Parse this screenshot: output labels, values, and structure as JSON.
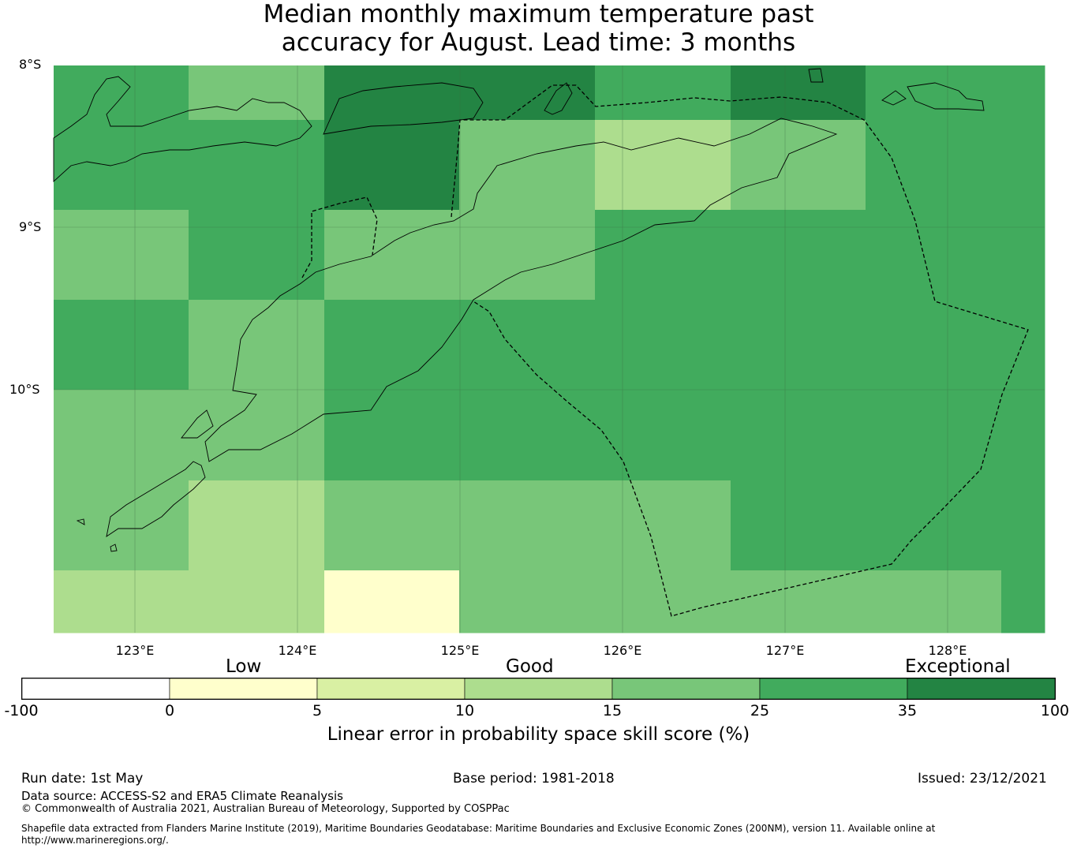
{
  "title": {
    "line1": "Median monthly maximum temperature past",
    "line2": "accuracy for August. Lead time: 3 months"
  },
  "map": {
    "latitude_labels": [
      "8°S",
      "9°S",
      "10°S"
    ],
    "longitude_labels": [
      "123°E",
      "124°E",
      "125°E",
      "126°E",
      "127°E",
      "128°E"
    ],
    "cell_values_pct": [
      [
        30,
        20,
        40,
        40,
        30,
        40,
        30,
        30
      ],
      [
        30,
        30,
        40,
        20,
        12,
        20,
        30,
        30
      ],
      [
        20,
        30,
        20,
        20,
        30,
        30,
        30,
        30
      ],
      [
        30,
        20,
        30,
        30,
        30,
        30,
        30,
        30
      ],
      [
        20,
        20,
        30,
        30,
        30,
        30,
        30,
        30
      ],
      [
        20,
        12,
        20,
        20,
        20,
        30,
        30,
        30
      ],
      [
        12,
        12,
        3,
        20,
        20,
        20,
        20,
        30
      ]
    ]
  },
  "colorbar": {
    "qualitative_labels": [
      "Low",
      "Good",
      "Exceptional"
    ],
    "ticks": [
      "-100",
      "0",
      "5",
      "10",
      "15",
      "25",
      "35",
      "100"
    ],
    "colors": [
      "#ffffff",
      "#ffffcc",
      "#d9f0a3",
      "#addd8e",
      "#78c679",
      "#41ab5d",
      "#238443"
    ],
    "label": "Linear error in probability space skill score (%)"
  },
  "footer": {
    "run_date": "Run date: 1st May",
    "base_period": "Base period: 1981-2018",
    "issued": "Issued: 23/12/2021",
    "data_source": "Data source: ACCESS-S2 and ERA5 Climate Reanalysis",
    "copyright": "© Commonwealth of Australia 2021, Australian Bureau of Meteorology, Supported by COSPPac",
    "shapefile_line1": "Shapefile data extracted from Flanders Marine Institute (2019), Maritime Boundaries Geodatabase: Maritime Boundaries and Exclusive Economic Zones (200NM), version 11. Available online at",
    "shapefile_line2": "http://www.marineregions.org/."
  }
}
